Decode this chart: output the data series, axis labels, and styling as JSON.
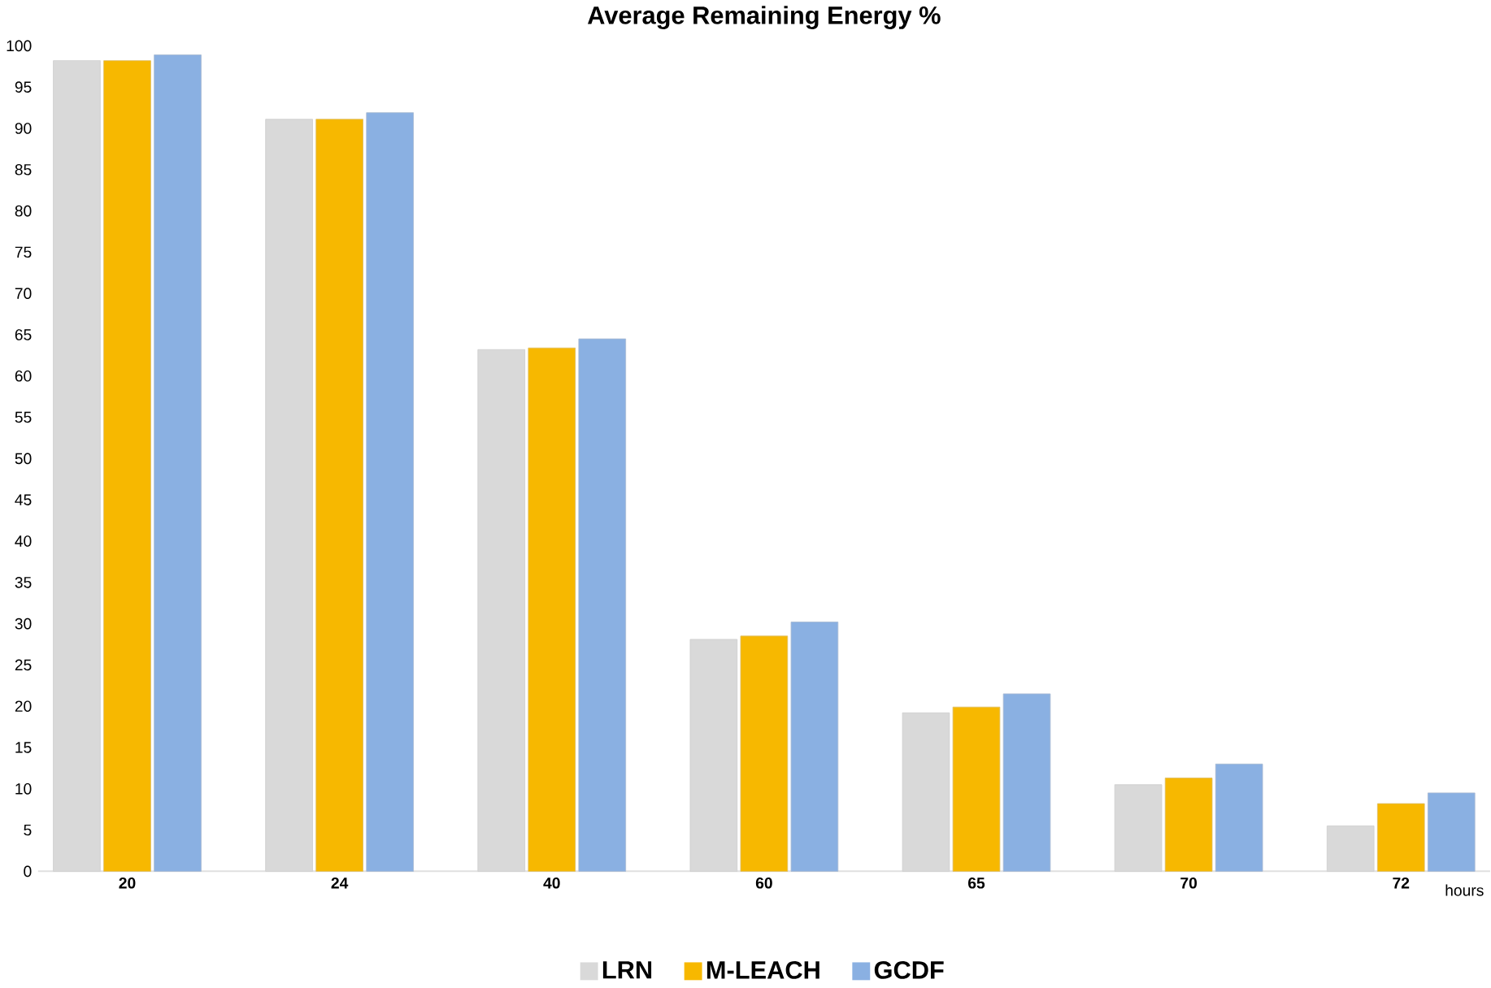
{
  "chart_data": {
    "type": "bar",
    "title": "Average Remaining Energy %",
    "xlabel": "hours",
    "categories": [
      "20",
      "24",
      "40",
      "60",
      "65",
      "70",
      "72"
    ],
    "series": [
      {
        "name": "LRN",
        "color": "#d9d9d9",
        "values": [
          98.2,
          91.1,
          63.2,
          28.1,
          19.2,
          10.5,
          5.5
        ]
      },
      {
        "name": "M-LEACH",
        "color": "#f7b800",
        "values": [
          98.2,
          91.1,
          63.4,
          28.5,
          19.9,
          11.3,
          8.2
        ]
      },
      {
        "name": "GCDF",
        "color": "#8ab0e2",
        "values": [
          98.9,
          91.9,
          64.5,
          30.2,
          21.5,
          13.0,
          9.5
        ]
      }
    ],
    "ylim": [
      0,
      100
    ],
    "yticks": [
      0,
      5,
      10,
      15,
      20,
      25,
      30,
      35,
      40,
      45,
      50,
      55,
      60,
      65,
      70,
      75,
      80,
      85,
      90,
      95,
      100
    ],
    "grid": false,
    "legend": "bottom"
  }
}
